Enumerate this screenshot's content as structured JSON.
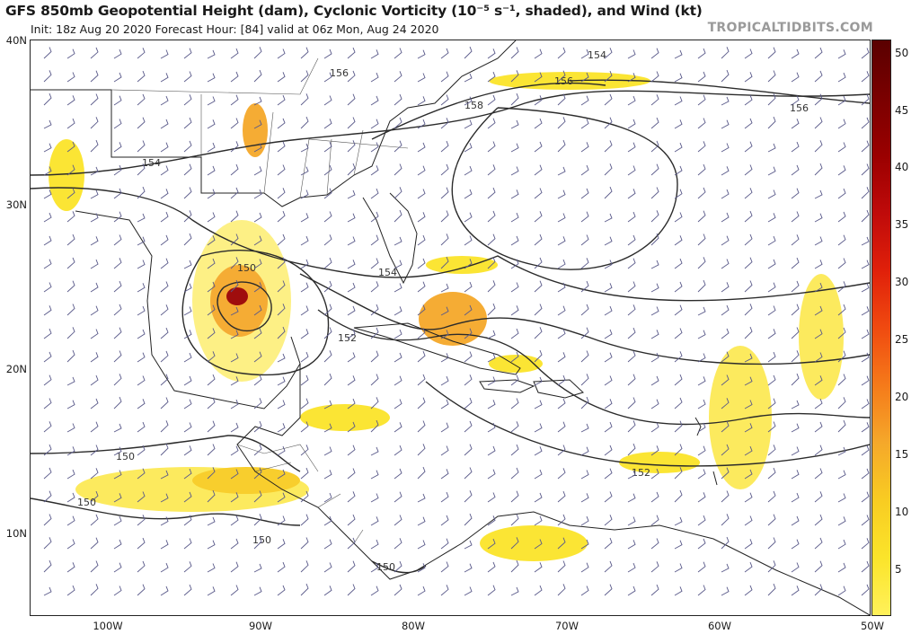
{
  "header": {
    "title": "GFS 850mb Geopotential Height (dam), Cyclonic Vorticity (10⁻⁵ s⁻¹, shaded), and Wind (kt)",
    "subtitle": "Init: 18z Aug 20 2020   Forecast Hour: [84]   valid at 06z Mon, Aug 24 2020",
    "brand": "TROPICALTIDBITS.COM"
  },
  "map": {
    "lat_labels": [
      "40N",
      "30N",
      "20N",
      "10N"
    ],
    "lon_labels": [
      "100W",
      "90W",
      "80W",
      "70W",
      "60W",
      "50W"
    ],
    "contour_labels": [
      "156",
      "154",
      "156",
      "156",
      "158",
      "154",
      "150",
      "154",
      "152",
      "150",
      "150",
      "150",
      "152",
      "150"
    ],
    "land_color": "#ffffff",
    "contour_color": "#2b2b2b",
    "barb_color": "#5a5a8a"
  },
  "colorbar": {
    "labels": [
      "50",
      "45",
      "40",
      "35",
      "30",
      "25",
      "20",
      "15",
      "10",
      "5"
    ],
    "colors": [
      "#5a0000",
      "#7a0000",
      "#9a0000",
      "#bf0a0a",
      "#e0200a",
      "#f04a10",
      "#f57a1a",
      "#f5a82a",
      "#f8cc22",
      "#fbe42a",
      "#fff15a"
    ]
  }
}
